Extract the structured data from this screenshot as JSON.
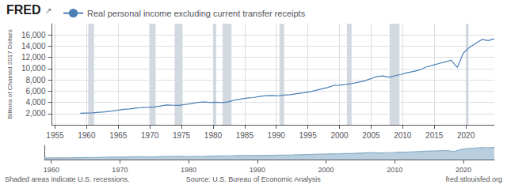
{
  "chart_data": [
    {
      "type": "line",
      "ylabel": "Billions of Chained 2017 Dollars",
      "x": [
        1959.0,
        1959.9776,
        1960.9552,
        1961.9328,
        1962.9104,
        1963.8881,
        1964.8657,
        1965.8433,
        1966.8209,
        1967.7985,
        1968.7761,
        1969.7537,
        1970.7313,
        1971.709,
        1972.6866,
        1973.6642,
        1974.6418,
        1975.6194,
        1976.597,
        1977.5746,
        1978.5522,
        1979.5299,
        1980.5075,
        1981.4851,
        1982.4627,
        1983.4403,
        1984.4179,
        1985.3955,
        1986.3731,
        1987.3507,
        1988.3284,
        1989.306,
        1990.2836,
        1991.2612,
        1992.2388,
        1993.2164,
        1994.194,
        1995.1716,
        1996.1493,
        1997.1269,
        1998.1045,
        1999.0821,
        2000.0597,
        2001.0373,
        2002.0149,
        2002.9925,
        2003.9701,
        2004.9478,
        2005.9254,
        2006.903,
        2007.8806,
        2008.8582,
        2009.8358,
        2010.8134,
        2011.791,
        2012.7687,
        2013.7463,
        2014.7239,
        2015.7015,
        2016.6791,
        2017.6567,
        2018.6343,
        2019.6119,
        2020.5896,
        2021.5672,
        2022.5448,
        2023.5224,
        2024.5
      ],
      "series": [
        {
          "name": "Real personal income excluding current transfer receipts",
          "color": "#4a7fb5",
          "values": [
            2050,
            2100,
            2130,
            2220,
            2310,
            2450,
            2590,
            2750,
            2840,
            2980,
            3090,
            3100,
            3180,
            3350,
            3530,
            3480,
            3450,
            3620,
            3780,
            3980,
            4050,
            3980,
            4020,
            3950,
            4100,
            4400,
            4580,
            4760,
            4850,
            5050,
            5190,
            5230,
            5170,
            5290,
            5370,
            5530,
            5670,
            5850,
            6100,
            6380,
            6620,
            7000,
            7050,
            7180,
            7350,
            7580,
            7820,
            8200,
            8600,
            8700,
            8450,
            8750,
            9000,
            9300,
            9500,
            9800,
            10300,
            10600,
            10900,
            11200,
            11500,
            10200,
            12800,
            13800,
            14500,
            15200,
            15000,
            15300
          ]
        }
      ],
      "xlim": [
        1954.5,
        2024.5
      ],
      "xticks": [
        1955,
        1960,
        1965,
        1970,
        1975,
        1980,
        1985,
        1990,
        1995,
        2000,
        2005,
        2010,
        2015,
        2020
      ],
      "ylim": [
        0,
        18000
      ],
      "yticks": [
        {
          "value": 2000,
          "label": "2,000"
        },
        {
          "value": 4000,
          "label": "4,000"
        },
        {
          "value": 6000,
          "label": "6,000"
        },
        {
          "value": 8000,
          "label": "8,000"
        },
        {
          "value": 10000,
          "label": "10,000"
        },
        {
          "value": 12000,
          "label": "12,000"
        },
        {
          "value": 14000,
          "label": "14,000"
        },
        {
          "value": 16000,
          "label": "16,000"
        }
      ],
      "grid": true,
      "legend": "top left",
      "shaded_areas": {
        "color": "#d3d9e0",
        "ranges": [
          [
            1960.25,
            1961.17
          ],
          [
            1969.92,
            1970.92
          ],
          [
            1973.92,
            1975.17
          ],
          [
            1980.0,
            1980.5
          ],
          [
            1981.5,
            1982.92
          ],
          [
            1990.5,
            1991.25
          ],
          [
            2001.17,
            2001.92
          ],
          [
            2007.92,
            2009.5
          ],
          [
            2020.0,
            2020.42
          ]
        ]
      },
      "annotations": [
        "FRED",
        "↗"
      ]
    },
    {
      "type": "area",
      "x": [
        1959.0,
        1959.9776,
        1960.9552,
        1961.9328,
        1962.9104,
        1963.8881,
        1964.8657,
        1965.8433,
        1966.8209,
        1967.7985,
        1968.7761,
        1969.7537,
        1970.7313,
        1971.709,
        1972.6866,
        1973.6642,
        1974.6418,
        1975.6194,
        1976.597,
        1977.5746,
        1978.5522,
        1979.5299,
        1980.5075,
        1981.4851,
        1982.4627,
        1983.4403,
        1984.4179,
        1985.3955,
        1986.3731,
        1987.3507,
        1988.3284,
        1989.306,
        1990.2836,
        1991.2612,
        1992.2388,
        1993.2164,
        1994.194,
        1995.1716,
        1996.1493,
        1997.1269,
        1998.1045,
        1999.0821,
        2000.0597,
        2001.0373,
        2002.0149,
        2002.9925,
        2003.9701,
        2004.9478,
        2005.9254,
        2006.903,
        2007.8806,
        2008.8582,
        2009.8358,
        2010.8134,
        2011.791,
        2012.7687,
        2013.7463,
        2014.7239,
        2015.7015,
        2016.6791,
        2017.6567,
        2018.6343,
        2019.6119,
        2020.5896,
        2021.5672,
        2022.5448,
        2023.5224,
        2024.5
      ],
      "values": [
        2050,
        2100,
        2130,
        2220,
        2310,
        2450,
        2590,
        2750,
        2840,
        2980,
        3090,
        3100,
        3180,
        3350,
        3530,
        3480,
        3450,
        3620,
        3780,
        3980,
        4050,
        3980,
        4020,
        3950,
        4100,
        4400,
        4580,
        4760,
        4850,
        5050,
        5190,
        5230,
        5170,
        5290,
        5370,
        5530,
        5670,
        5850,
        6100,
        6380,
        6620,
        7000,
        7050,
        7180,
        7350,
        7580,
        7820,
        8200,
        8600,
        8700,
        8450,
        8750,
        9000,
        9300,
        9500,
        9800,
        10300,
        10600,
        10900,
        11200,
        11500,
        10200,
        12800,
        13800,
        14500,
        15200,
        15000,
        15300
      ],
      "color": "#8aaec8",
      "xlim": [
        1959,
        2024.5
      ],
      "xticks": [
        1960,
        1970,
        1980,
        1990,
        2000,
        2010,
        2020
      ],
      "ylim": [
        0,
        18000
      ],
      "yticks": [],
      "tick_labels": "x",
      "grid": false,
      "annotations": [
        "Shaded areas indicate U.S. recessions.",
        "Source: U.S. Bureau of Economic Analysis",
        "fred.stlouisfed.org"
      ]
    }
  ]
}
